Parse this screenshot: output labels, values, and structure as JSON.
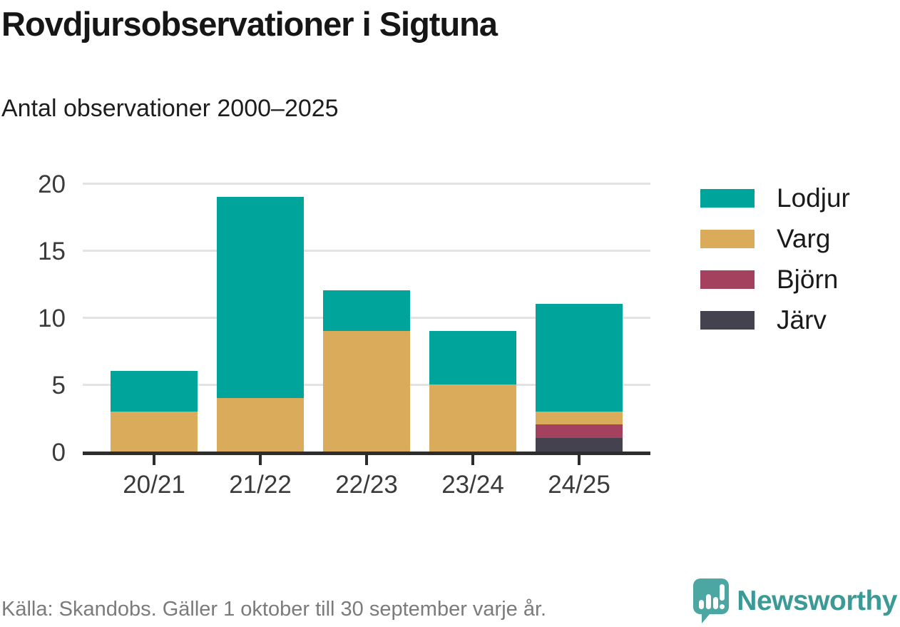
{
  "header": {},
  "chart_data": {
    "type": "bar",
    "stacked": true,
    "title": "Rovdjursobservationer i Sigtuna",
    "subtitle": "Antal observationer 2000–2025",
    "categories": [
      "20/21",
      "21/22",
      "22/23",
      "23/24",
      "24/25"
    ],
    "series": [
      {
        "name": "Lodjur",
        "key": "lodjur",
        "color": "#00a49b",
        "values": [
          3,
          15,
          3,
          4,
          8
        ]
      },
      {
        "name": "Varg",
        "key": "varg",
        "color": "#d9ab5a",
        "values": [
          3,
          4,
          9,
          5,
          1
        ]
      },
      {
        "name": "Björn",
        "key": "bjorn",
        "color": "#a4415f",
        "values": [
          0,
          0,
          0,
          0,
          1
        ]
      },
      {
        "name": "Järv",
        "key": "jarv",
        "color": "#45424f",
        "values": [
          0,
          0,
          0,
          0,
          1
        ]
      }
    ],
    "stack_order_bottom_to_top": [
      "Järv",
      "Björn",
      "Varg",
      "Lodjur"
    ],
    "totals": [
      6,
      19,
      12,
      9,
      11
    ],
    "xlabel": "",
    "ylabel": "",
    "y_ticks": [
      0,
      5,
      10,
      15,
      20
    ],
    "ylim": [
      0,
      20
    ],
    "grid": true,
    "legend_position": "right"
  },
  "footer": {
    "source": "Källa: Skandobs. Gäller 1 oktober till 30 september varje år.",
    "brand": "Newsworthy"
  },
  "colors": {
    "lodjur": "#00a49b",
    "varg": "#d9ab5a",
    "bjorn": "#a4415f",
    "jarv": "#45424f",
    "axis": "#2d2d2d",
    "gridline": "#e3e3e3",
    "source_text": "#7b7b7b",
    "brand_teal": "#3c9a96"
  },
  "icons": {
    "logo": "newsworthy-speech-bubble-bar-chart-icon"
  }
}
